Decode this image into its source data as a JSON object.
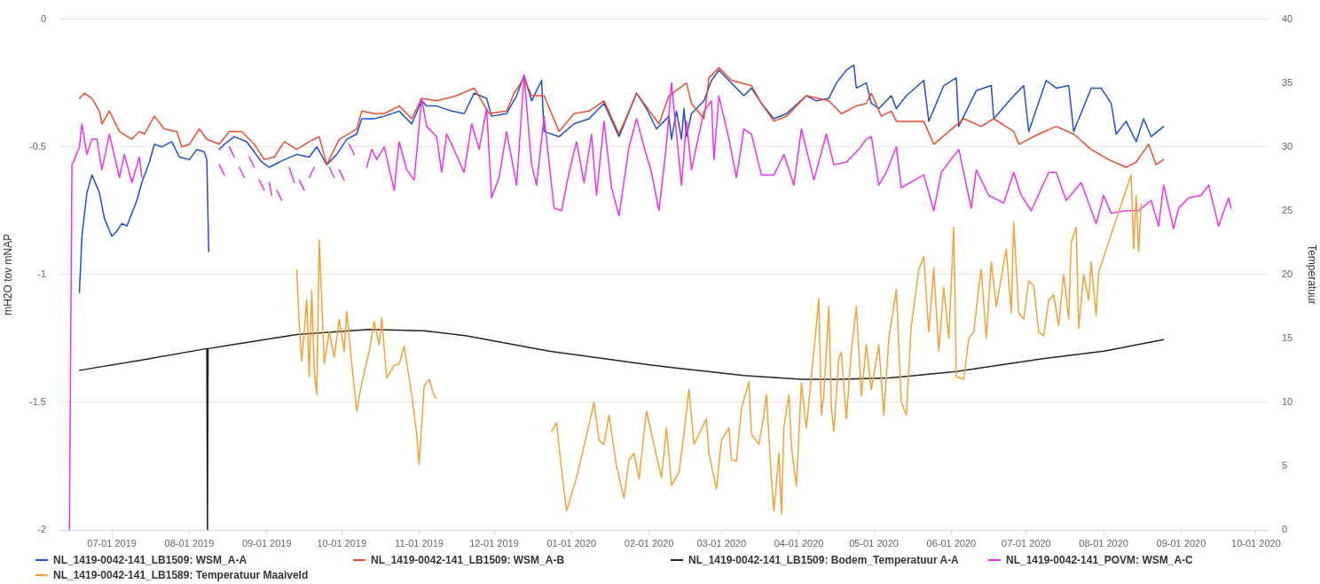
{
  "chart_data": {
    "type": "line",
    "ylabel": "mH2O tov mNAP",
    "y2label": "Temperatuur",
    "xlim": [
      "2019-06-10",
      "2020-10-06"
    ],
    "xticks": [
      {
        "value": "2019-07-01",
        "label": "07-01 2019"
      },
      {
        "value": "2019-08-01",
        "label": "08-01 2019"
      },
      {
        "value": "2019-09-01",
        "label": "09-01 2019"
      },
      {
        "value": "2019-10-01",
        "label": "10-01 2019"
      },
      {
        "value": "2019-11-01",
        "label": "11-01 2019"
      },
      {
        "value": "2019-12-01",
        "label": "12-01 2019"
      },
      {
        "value": "2020-01-01",
        "label": "01-01 2020"
      },
      {
        "value": "2020-02-01",
        "label": "02-01 2020"
      },
      {
        "value": "2020-03-01",
        "label": "03-01 2020"
      },
      {
        "value": "2020-04-01",
        "label": "04-01 2020"
      },
      {
        "value": "2020-05-01",
        "label": "05-01 2020"
      },
      {
        "value": "2020-06-01",
        "label": "06-01 2020"
      },
      {
        "value": "2020-07-01",
        "label": "07-01 2020"
      },
      {
        "value": "2020-08-01",
        "label": "08-01 2020"
      },
      {
        "value": "2020-09-01",
        "label": "09-01 2020"
      },
      {
        "value": "2020-10-01",
        "label": "10-01 2020"
      }
    ],
    "ylim": [
      -2,
      0
    ],
    "yticks": [
      -2,
      -1.5,
      -1,
      -0.5,
      0
    ],
    "y2lim": [
      0,
      40
    ],
    "y2ticks": [
      0,
      5,
      10,
      15,
      20,
      25,
      30,
      35,
      40
    ],
    "grid": "y",
    "legend": "bottom",
    "series": [
      {
        "name": "NL_1419-0042-141_LB1509: WSM_A-A",
        "color": "#1f4fd0",
        "x": [
          "2019-06-18",
          "2019-06-19",
          "2019-06-21",
          "2019-06-23",
          "2019-06-26",
          "2019-06-28",
          "2019-07-01",
          "2019-07-03",
          "2019-07-05",
          "2019-07-07",
          "2019-07-09",
          "2019-07-11",
          "2019-07-13",
          "2019-07-16",
          "2019-07-18",
          "2019-07-21",
          "2019-07-25",
          "2019-07-28",
          "2019-08-01",
          "2019-08-04",
          "2019-08-07",
          "2019-08-08",
          "2019-08-08T18:00",
          "2019-08-11",
          "2019-08-13",
          "2019-08-15",
          "2019-08-19",
          "2019-08-24",
          "2019-08-30",
          "2019-09-02",
          "2019-09-08",
          "2019-09-13",
          "2019-09-18",
          "2019-09-21",
          "2019-09-25",
          "2019-09-29",
          "2019-10-03",
          "2019-10-07",
          "2019-10-09",
          "2019-10-14",
          "2019-10-18",
          "2019-10-24",
          "2019-10-29",
          "2019-11-02",
          "2019-11-04",
          "2019-11-08",
          "2019-11-14",
          "2019-11-19",
          "2019-11-23",
          "2019-11-28",
          "2019-11-30",
          "2019-12-06",
          "2019-12-10",
          "2019-12-13",
          "2019-12-16",
          "2019-12-20",
          "2019-12-21",
          "2019-12-27",
          "2020-01-02",
          "2020-01-08",
          "2020-01-14",
          "2020-01-20",
          "2020-01-27",
          "2020-01-31",
          "2020-02-04",
          "2020-02-09",
          "2020-02-10",
          "2020-02-12",
          "2020-02-14",
          "2020-02-15",
          "2020-02-16",
          "2020-02-18",
          "2020-02-23",
          "2020-02-26",
          "2020-02-29",
          "2020-03-05",
          "2020-03-10",
          "2020-03-13",
          "2020-03-17",
          "2020-03-22",
          "2020-03-27",
          "2020-04-04",
          "2020-04-08",
          "2020-04-13",
          "2020-04-16",
          "2020-04-20",
          "2020-04-23",
          "2020-04-24",
          "2020-04-28",
          "2020-04-30",
          "2020-05-03",
          "2020-05-08",
          "2020-05-10",
          "2020-05-14",
          "2020-05-21",
          "2020-05-23",
          "2020-05-29",
          "2020-06-03",
          "2020-06-04",
          "2020-06-11",
          "2020-06-17",
          "2020-06-18",
          "2020-06-26",
          "2020-06-30",
          "2020-07-02",
          "2020-07-09",
          "2020-07-13",
          "2020-07-18",
          "2020-07-20",
          "2020-07-27",
          "2020-07-31",
          "2020-08-04",
          "2020-08-06",
          "2020-08-10",
          "2020-08-14",
          "2020-08-17",
          "2020-08-20",
          "2020-08-25"
        ],
        "values": [
          -1.07,
          -0.85,
          -0.68,
          -0.61,
          -0.68,
          -0.78,
          -0.85,
          -0.83,
          -0.8,
          -0.81,
          -0.76,
          -0.71,
          -0.64,
          -0.56,
          -0.49,
          -0.5,
          -0.48,
          -0.54,
          -0.55,
          -0.51,
          -0.52,
          -0.55,
          -0.91,
          null,
          -0.51,
          -0.49,
          -0.46,
          -0.48,
          -0.56,
          -0.58,
          -0.55,
          -0.53,
          -0.54,
          -0.5,
          -0.57,
          -0.53,
          -0.47,
          -0.45,
          -0.39,
          -0.39,
          -0.38,
          -0.36,
          -0.41,
          -0.32,
          -0.34,
          -0.34,
          -0.36,
          -0.37,
          -0.29,
          -0.31,
          -0.38,
          -0.37,
          -0.3,
          -0.22,
          -0.32,
          -0.24,
          -0.44,
          -0.46,
          -0.41,
          -0.39,
          -0.33,
          -0.46,
          -0.29,
          -0.35,
          -0.43,
          -0.38,
          -0.47,
          -0.36,
          -0.47,
          -0.35,
          -0.46,
          -0.37,
          -0.32,
          -0.24,
          -0.2,
          -0.25,
          -0.3,
          -0.27,
          -0.33,
          -0.39,
          -0.37,
          -0.3,
          -0.32,
          -0.31,
          -0.25,
          -0.2,
          -0.18,
          -0.27,
          -0.25,
          -0.33,
          -0.35,
          -0.3,
          -0.35,
          -0.3,
          -0.24,
          -0.4,
          -0.26,
          -0.23,
          -0.42,
          -0.28,
          -0.26,
          -0.39,
          -0.3,
          -0.26,
          -0.44,
          -0.24,
          -0.27,
          -0.26,
          -0.44,
          -0.27,
          -0.27,
          -0.33,
          -0.45,
          -0.4,
          -0.48,
          -0.39,
          -0.46,
          -0.42
        ]
      },
      {
        "name": "NL_1419-0042-141_LB1509: WSM_A-B",
        "color": "#f04b2d",
        "x": [
          "2019-06-18",
          "2019-06-20",
          "2019-06-23",
          "2019-06-26",
          "2019-06-27",
          "2019-06-30",
          "2019-07-04",
          "2019-07-09",
          "2019-07-12",
          "2019-07-14",
          "2019-07-18",
          "2019-07-22",
          "2019-07-27",
          "2019-07-29",
          "2019-08-01",
          "2019-08-05",
          "2019-08-08",
          "2019-08-13",
          "2019-08-17",
          "2019-08-22",
          "2019-08-27",
          "2019-08-31",
          "2019-09-04",
          "2019-09-08",
          "2019-09-13",
          "2019-09-18",
          "2019-09-22",
          "2019-09-25",
          "2019-09-30",
          "2019-10-07",
          "2019-10-09",
          "2019-10-14",
          "2019-10-18",
          "2019-10-24",
          "2019-10-29",
          "2019-11-02",
          "2019-11-08",
          "2019-11-16",
          "2019-11-23",
          "2019-11-29",
          "2019-12-06",
          "2019-12-09",
          "2019-12-13",
          "2019-12-16",
          "2019-12-21",
          "2019-12-27",
          "2020-01-02",
          "2020-01-08",
          "2020-01-14",
          "2020-01-20",
          "2020-01-27",
          "2020-02-05",
          "2020-02-09",
          "2020-02-16",
          "2020-02-18",
          "2020-02-23",
          "2020-02-25",
          "2020-02-29",
          "2020-03-05",
          "2020-03-13",
          "2020-03-17",
          "2020-03-22",
          "2020-03-27",
          "2020-04-04",
          "2020-04-13",
          "2020-04-18",
          "2020-04-24",
          "2020-04-28",
          "2020-04-30",
          "2020-05-04",
          "2020-05-08",
          "2020-05-10",
          "2020-05-21",
          "2020-05-25",
          "2020-05-31",
          "2020-06-06",
          "2020-06-13",
          "2020-06-18",
          "2020-06-26",
          "2020-06-28",
          "2020-07-06",
          "2020-07-13",
          "2020-07-20",
          "2020-07-27",
          "2020-08-03",
          "2020-08-10",
          "2020-08-14",
          "2020-08-19",
          "2020-08-22",
          "2020-08-25"
        ],
        "values": [
          -0.31,
          -0.29,
          -0.31,
          -0.36,
          -0.41,
          -0.36,
          -0.44,
          -0.47,
          -0.44,
          -0.45,
          -0.38,
          -0.43,
          -0.44,
          -0.5,
          -0.49,
          -0.43,
          -0.47,
          -0.49,
          -0.44,
          -0.44,
          -0.49,
          -0.55,
          -0.54,
          -0.48,
          -0.51,
          -0.48,
          -0.46,
          -0.57,
          -0.47,
          -0.43,
          -0.36,
          -0.37,
          -0.37,
          -0.34,
          -0.39,
          -0.31,
          -0.32,
          -0.3,
          -0.27,
          -0.37,
          -0.36,
          -0.29,
          -0.23,
          -0.3,
          -0.3,
          -0.44,
          -0.37,
          -0.36,
          -0.32,
          -0.45,
          -0.29,
          -0.41,
          -0.3,
          -0.25,
          -0.33,
          -0.39,
          -0.23,
          -0.19,
          -0.24,
          -0.26,
          -0.33,
          -0.4,
          -0.38,
          -0.3,
          -0.32,
          -0.37,
          -0.34,
          -0.33,
          -0.29,
          -0.38,
          -0.36,
          -0.4,
          -0.4,
          -0.49,
          -0.44,
          -0.39,
          -0.42,
          -0.39,
          -0.44,
          -0.49,
          -0.45,
          -0.42,
          -0.45,
          -0.51,
          -0.55,
          -0.58,
          -0.56,
          -0.49,
          -0.57,
          -0.55
        ]
      },
      {
        "name": "NL_1419-0042-141_LB1509: Bodem_Temperatuur A-A",
        "color": "#222222",
        "axis": "y2",
        "x": [
          "2019-06-18",
          "2019-07-13",
          "2019-08-08",
          "2019-08-08T06:00",
          "2019-08-08T12:00",
          "2019-09-13",
          "2019-10-12",
          "2019-11-03",
          "2019-11-20",
          "2019-12-23",
          "2020-02-02",
          "2020-03-10",
          "2020-04-02",
          "2020-04-17",
          "2020-05-07",
          "2020-06-03",
          "2020-07-07",
          "2020-08-01",
          "2020-08-25"
        ],
        "values": [
          12.5,
          13.3,
          14.2,
          0,
          14.2,
          15.3,
          15.7,
          15.6,
          15.2,
          14.0,
          12.9,
          12.1,
          11.8,
          11.8,
          11.9,
          12.4,
          13.4,
          14.0,
          14.9
        ]
      },
      {
        "name": "NL_1419-0042-141_POVM: WSM_A-C",
        "color": "#f02ff0",
        "x": [
          "2019-06-14",
          "2019-06-15",
          "2019-06-16",
          "2019-06-18",
          "2019-06-19",
          "2019-06-21",
          "2019-06-23",
          "2019-06-25",
          "2019-06-27",
          "2019-06-30",
          "2019-07-04",
          "2019-07-06",
          "2019-07-09",
          "2019-07-12",
          "2019-07-13",
          "2019-08-01",
          "2019-08-13",
          "2019-08-15",
          "2019-08-16",
          "2019-08-17",
          "2019-08-19",
          "2019-08-20",
          "2019-08-21",
          "2019-08-23",
          "2019-08-24",
          "2019-08-25",
          "2019-08-27",
          "2019-08-28",
          "2019-08-29",
          "2019-08-31",
          "2019-09-01",
          "2019-09-02",
          "2019-09-03",
          "2019-09-04",
          "2019-09-05",
          "2019-09-07",
          "2019-09-08",
          "2019-09-10",
          "2019-09-12",
          "2019-09-13",
          "2019-09-14",
          "2019-09-16",
          "2019-09-17",
          "2019-09-18",
          "2019-09-20",
          "2019-09-23",
          "2019-09-26",
          "2019-09-28",
          "2019-09-29",
          "2019-09-30",
          "2019-10-02",
          "2019-10-03",
          "2019-10-04",
          "2019-10-06",
          "2019-10-08",
          "2019-10-11",
          "2019-10-13",
          "2019-10-15",
          "2019-10-18",
          "2019-10-22",
          "2019-10-24",
          "2019-10-27",
          "2019-10-30",
          "2019-11-02",
          "2019-11-04",
          "2019-11-08",
          "2019-11-10",
          "2019-11-12",
          "2019-11-14",
          "2019-11-19",
          "2019-11-22",
          "2019-11-25",
          "2019-11-28",
          "2019-11-30",
          "2019-12-03",
          "2019-12-06",
          "2019-12-10",
          "2019-12-13",
          "2019-12-16",
          "2019-12-18",
          "2019-12-21",
          "2019-12-25",
          "2019-12-28",
          "2019-12-31",
          "2020-01-03",
          "2020-01-06",
          "2020-01-09",
          "2020-01-11",
          "2020-01-14",
          "2020-01-17",
          "2020-01-20",
          "2020-01-24",
          "2020-01-27",
          "2020-01-30",
          "2020-02-02",
          "2020-02-05",
          "2020-02-08",
          "2020-02-10",
          "2020-02-14",
          "2020-02-16",
          "2020-02-18",
          "2020-02-23",
          "2020-02-26",
          "2020-02-27",
          "2020-02-29",
          "2020-03-04",
          "2020-03-07",
          "2020-03-10",
          "2020-03-13",
          "2020-03-17",
          "2020-03-22",
          "2020-03-26",
          "2020-03-30",
          "2020-04-02",
          "2020-04-07",
          "2020-04-12",
          "2020-04-15",
          "2020-04-20",
          "2020-04-25",
          "2020-04-28",
          "2020-04-30",
          "2020-05-03",
          "2020-05-06",
          "2020-05-10",
          "2020-05-12",
          "2020-05-21",
          "2020-05-25",
          "2020-05-28",
          "2020-06-04",
          "2020-06-09",
          "2020-06-11",
          "2020-06-16",
          "2020-06-22",
          "2020-06-26",
          "2020-06-29",
          "2020-07-03",
          "2020-07-10",
          "2020-07-13",
          "2020-07-17",
          "2020-07-23",
          "2020-07-29",
          "2020-08-01",
          "2020-08-04",
          "2020-08-10",
          "2020-08-15",
          "2020-08-20",
          "2020-08-23",
          "2020-08-25",
          "2020-08-29",
          "2020-08-31",
          "2020-09-04",
          "2020-09-09",
          "2020-09-12",
          "2020-09-16",
          "2020-09-20",
          "2020-09-21"
        ],
        "values": [
          -2,
          -0.57,
          -0.55,
          -0.5,
          -0.41,
          -0.53,
          -0.47,
          -0.47,
          -0.59,
          -0.45,
          -0.62,
          -0.53,
          -0.64,
          -0.54,
          -0.62,
          null,
          -0.57,
          -0.61,
          null,
          -0.5,
          -0.54,
          null,
          -0.58,
          -0.62,
          null,
          -0.54,
          -0.58,
          null,
          -0.63,
          -0.67,
          null,
          -0.64,
          -0.69,
          null,
          -0.67,
          -0.71,
          null,
          -0.58,
          -0.64,
          null,
          -0.63,
          -0.67,
          null,
          -0.62,
          -0.58,
          null,
          -0.58,
          -0.62,
          null,
          -0.59,
          -0.63,
          null,
          -0.49,
          -0.53,
          null,
          -0.58,
          -0.51,
          -0.55,
          -0.5,
          -0.67,
          -0.48,
          -0.59,
          -0.63,
          -0.31,
          -0.42,
          -0.46,
          -0.6,
          -0.45,
          -0.49,
          -0.6,
          -0.41,
          -0.51,
          -0.35,
          -0.7,
          -0.62,
          -0.44,
          -0.65,
          -0.22,
          -0.57,
          -0.65,
          -0.38,
          -0.74,
          -0.75,
          -0.6,
          -0.48,
          -0.64,
          -0.45,
          -0.69,
          -0.4,
          -0.66,
          -0.77,
          -0.5,
          -0.39,
          -0.5,
          -0.6,
          -0.75,
          -0.49,
          -0.25,
          -0.65,
          -0.4,
          -0.59,
          -0.36,
          -0.32,
          -0.55,
          -0.3,
          -0.47,
          -0.62,
          -0.43,
          -0.45,
          -0.61,
          -0.61,
          -0.53,
          -0.65,
          -0.43,
          -0.63,
          -0.45,
          -0.57,
          -0.56,
          -0.51,
          -0.47,
          -0.46,
          -0.65,
          -0.6,
          -0.5,
          -0.66,
          -0.61,
          -0.75,
          -0.6,
          -0.51,
          -0.74,
          -0.59,
          -0.69,
          -0.72,
          -0.6,
          -0.69,
          -0.75,
          -0.6,
          -0.6,
          -0.71,
          -0.64,
          -0.8,
          -0.69,
          -0.76,
          -0.75,
          -0.75,
          -0.71,
          -0.81,
          -0.65,
          -0.82,
          -0.74,
          -0.7,
          -0.69,
          -0.65,
          -0.81,
          -0.7,
          -0.74
        ]
      },
      {
        "name": "NL_1419-0042-141_LB1589: Temperatuur Maaiveld",
        "color": "#f7a035",
        "axis": "y2",
        "x": [
          "2019-09-13",
          "2019-09-14",
          "2019-09-15",
          "2019-09-17",
          "2019-09-18",
          "2019-09-19",
          "2019-09-20",
          "2019-09-21",
          "2019-09-22",
          "2019-09-24",
          "2019-09-26",
          "2019-09-28",
          "2019-09-30",
          "2019-10-02",
          "2019-10-03",
          "2019-10-05",
          "2019-10-07",
          "2019-10-09",
          "2019-10-10",
          "2019-10-12",
          "2019-10-14",
          "2019-10-16",
          "2019-10-17",
          "2019-10-19",
          "2019-10-22",
          "2019-10-24",
          "2019-10-26",
          "2019-10-29",
          "2019-10-31",
          "2019-11-01",
          "2019-11-03",
          "2019-11-05",
          "2019-11-07",
          "2019-11-08",
          "2019-12-01",
          "2019-12-24",
          "2019-12-26",
          "2019-12-28",
          "2019-12-30",
          "2020-01-03",
          "2020-01-07",
          "2020-01-10",
          "2020-01-12",
          "2020-01-14",
          "2020-01-16",
          "2020-01-19",
          "2020-01-22",
          "2020-01-24",
          "2020-01-26",
          "2020-01-28",
          "2020-01-31",
          "2020-02-04",
          "2020-02-06",
          "2020-02-08",
          "2020-02-10",
          "2020-02-13",
          "2020-02-15",
          "2020-02-17",
          "2020-02-19",
          "2020-02-21",
          "2020-02-24",
          "2020-02-25",
          "2020-02-28",
          "2020-03-01",
          "2020-03-04",
          "2020-03-05",
          "2020-03-07",
          "2020-03-09",
          "2020-03-12",
          "2020-03-13",
          "2020-03-16",
          "2020-03-18",
          "2020-03-19",
          "2020-03-21",
          "2020-03-22",
          "2020-03-24",
          "2020-03-25",
          "2020-03-26",
          "2020-03-28",
          "2020-03-29",
          "2020-03-31",
          "2020-04-02",
          "2020-04-04",
          "2020-04-06",
          "2020-04-09",
          "2020-04-10",
          "2020-04-11",
          "2020-04-13",
          "2020-04-14",
          "2020-04-15",
          "2020-04-17",
          "2020-04-18",
          "2020-04-20",
          "2020-04-22",
          "2020-04-24",
          "2020-04-26",
          "2020-04-28",
          "2020-04-30",
          "2020-05-03",
          "2020-05-05",
          "2020-05-07",
          "2020-05-10",
          "2020-05-12",
          "2020-05-14",
          "2020-05-16",
          "2020-05-19",
          "2020-05-21",
          "2020-05-23",
          "2020-05-25",
          "2020-05-27",
          "2020-05-29",
          "2020-05-31",
          "2020-06-02",
          "2020-06-03",
          "2020-06-06",
          "2020-06-08",
          "2020-06-10",
          "2020-06-12",
          "2020-06-13",
          "2020-06-15",
          "2020-06-17",
          "2020-06-19",
          "2020-06-21",
          "2020-06-23",
          "2020-06-25",
          "2020-06-26",
          "2020-06-28",
          "2020-06-30",
          "2020-07-02",
          "2020-07-04",
          "2020-07-06",
          "2020-07-08",
          "2020-07-10",
          "2020-07-12",
          "2020-07-14",
          "2020-07-16",
          "2020-07-18",
          "2020-07-19",
          "2020-07-21",
          "2020-07-22",
          "2020-07-24",
          "2020-07-26",
          "2020-07-27",
          "2020-07-29",
          "2020-07-30",
          "2020-08-12",
          "2020-08-13",
          "2020-08-14",
          "2020-08-15",
          "2020-08-16"
        ],
        "values": [
          20.4,
          16.0,
          13.2,
          18.0,
          12.0,
          18.8,
          12.5,
          10.6,
          22.7,
          13.0,
          15.5,
          13.5,
          16.5,
          14.0,
          17.1,
          13.0,
          9.3,
          11.5,
          12.3,
          14.0,
          16.3,
          14.5,
          16.6,
          11.9,
          12.9,
          13.0,
          14.4,
          10.6,
          7.5,
          5.1,
          11.3,
          11.8,
          10.5,
          10.3,
          null,
          7.7,
          8.4,
          4.7,
          1.5,
          4.1,
          7.4,
          10.0,
          7.0,
          6.7,
          9.0,
          5.0,
          2.5,
          5.5,
          6.0,
          4.0,
          9.3,
          5.8,
          4.1,
          8.0,
          3.5,
          4.5,
          7.5,
          11.0,
          6.7,
          7.5,
          8.7,
          6.0,
          3.2,
          7.0,
          8.0,
          5.5,
          5.4,
          9.5,
          11.6,
          7.5,
          6.7,
          9.0,
          10.6,
          4.0,
          1.5,
          6.0,
          1.2,
          8.0,
          10.6,
          6.5,
          3.4,
          11.5,
          8.0,
          12.0,
          18.1,
          9.0,
          10.6,
          17.5,
          9.5,
          7.7,
          13.5,
          13.9,
          8.7,
          14.0,
          17.5,
          10.5,
          14.5,
          11.0,
          14.5,
          9.0,
          15.0,
          18.8,
          10.0,
          9.0,
          16.0,
          20.4,
          21.4,
          15.5,
          20.5,
          14.0,
          19.0,
          15.0,
          23.7,
          12.0,
          11.8,
          15.0,
          15.5,
          19.0,
          20.4,
          15.0,
          21.0,
          17.5,
          19.7,
          22.0,
          17.0,
          24.1,
          17.0,
          16.5,
          19.5,
          19.1,
          15.5,
          15.2,
          18.0,
          18.4,
          16.0,
          20.0,
          16.5,
          22.5,
          23.7,
          15.8,
          20.0,
          18.0,
          21.0,
          16.8,
          20.2,
          27.8,
          22.0,
          26.2,
          21.8,
          25.5
        ]
      }
    ]
  }
}
